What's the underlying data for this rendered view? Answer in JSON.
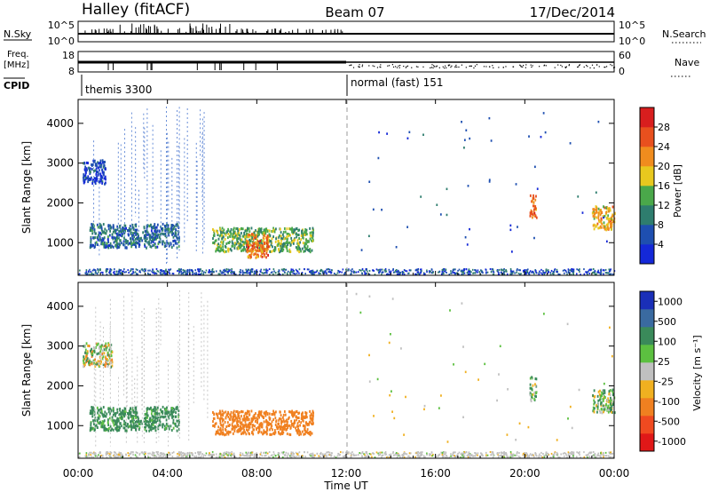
{
  "header": {
    "station": "Halley (fitACF)",
    "beam": "Beam 07",
    "date": "17/Dec/2014"
  },
  "top_panels": {
    "nsky_label": "N.Sky",
    "nsky_ticks": [
      "10^5",
      "10^0"
    ],
    "nsearch_label": "N.Search",
    "nsearch_ticks": [
      "10^5",
      "10^0"
    ],
    "freq_label_1": "Freq.",
    "freq_label_2": "[MHz]",
    "freq_ticks": [
      "18",
      "8"
    ],
    "nave_label": "Nave",
    "nave_ticks": [
      "60",
      "0"
    ],
    "cpid_label": "CPID",
    "cpid_segments": [
      {
        "name": "themis 3300",
        "start_hour": 0
      },
      {
        "name": "normal (fast) 151",
        "start_hour": 12
      }
    ]
  },
  "axes": {
    "ylabel": "Slant Range [km]",
    "xlabel": "Time UT",
    "x_ticks": [
      "00:00",
      "04:00",
      "08:00",
      "12:00",
      "16:00",
      "20:00",
      "00:00"
    ],
    "y_ticks": [
      "1000",
      "2000",
      "3000",
      "4000"
    ]
  },
  "power_bar": {
    "label": "Power [dB]",
    "ticks": [
      "4",
      "8",
      "12",
      "16",
      "20",
      "24",
      "28"
    ],
    "colors": [
      "#1428d8",
      "#1e4fb0",
      "#2e7d6e",
      "#4aa84a",
      "#e8c81e",
      "#f08c1e",
      "#e8501e",
      "#d81e1e"
    ]
  },
  "velocity_bar": {
    "label": "Velocity [m s⁻¹]",
    "ticks": [
      "1000",
      "500",
      "100",
      "25",
      "-25",
      "-100",
      "-500",
      "-1000"
    ],
    "colors": [
      "#1a2fb8",
      "#3a6aa0",
      "#3a8a5a",
      "#5cc040",
      "#c0c0c0",
      "#f0b020",
      "#f08020",
      "#f04a20",
      "#e01818"
    ]
  },
  "chart_data": [
    {
      "type": "heatmap",
      "title": "",
      "xlabel": "",
      "ylabel": "Slant Range [km]",
      "xlim_hours": [
        0,
        24
      ],
      "ylim_km": [
        180,
        4600
      ],
      "colorbar_label": "Power [dB]",
      "colorbar_range": [
        0,
        30
      ],
      "features": [
        {
          "start_hour": 0.2,
          "end_hour": 1.2,
          "range_km": 2800,
          "power_db": 4
        },
        {
          "start_hour": 0.5,
          "end_hour": 4.5,
          "range_km": 1200,
          "power_db": 8
        },
        {
          "start_hour": 6.0,
          "end_hour": 10.5,
          "range_km": 1100,
          "power_db": 14
        },
        {
          "start_hour": 7.5,
          "end_hour": 8.5,
          "range_km": 950,
          "power_db": 24
        },
        {
          "start_hour": 20.2,
          "end_hour": 20.5,
          "range_km": 1950,
          "power_db": 24
        },
        {
          "start_hour": 23.0,
          "end_hour": 24.0,
          "range_km": 1650,
          "power_db": 20
        }
      ]
    },
    {
      "type": "heatmap",
      "title": "",
      "xlabel": "Time UT",
      "ylabel": "Slant Range [km]",
      "xlim_hours": [
        0,
        24
      ],
      "ylim_km": [
        180,
        4600
      ],
      "colorbar_label": "Velocity [m s⁻¹]",
      "colorbar_ticks": [
        1000,
        500,
        100,
        25,
        -25,
        -100,
        -500,
        -1000
      ],
      "features": [
        {
          "start_hour": 0.2,
          "end_hour": 1.5,
          "range_km": 2800,
          "velocity": 0
        },
        {
          "start_hour": 0.5,
          "end_hour": 4.5,
          "range_km": 1200,
          "velocity": 200
        },
        {
          "start_hour": 6.0,
          "end_hour": 10.5,
          "range_km": 1100,
          "velocity": -300
        },
        {
          "start_hour": 20.2,
          "end_hour": 20.5,
          "range_km": 1950,
          "velocity": 100
        },
        {
          "start_hour": 23.0,
          "end_hour": 24.0,
          "range_km": 1650,
          "velocity": 50
        }
      ]
    }
  ]
}
